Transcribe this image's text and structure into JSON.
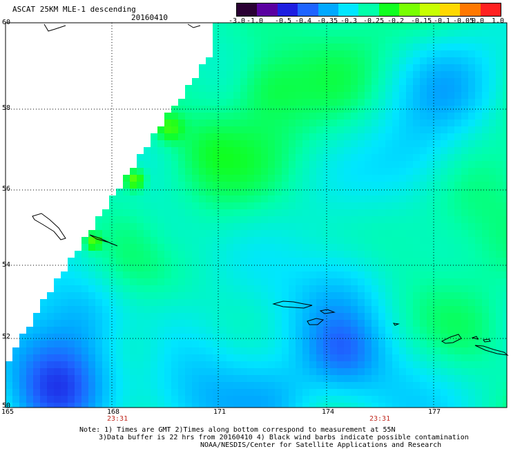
{
  "header": {
    "title": "ASCAT 25KM MLE-1 descending",
    "date": "20160410"
  },
  "colorbar": {
    "labels": [
      "-3.0",
      "-1.0",
      "-0.5",
      "-0.4",
      "-0.35",
      "-0.3",
      "-0.25",
      "-0.2",
      "-0.15",
      "-0.1",
      "-0.05",
      "0.0",
      "1.0"
    ],
    "colors": [
      "#2a0033",
      "#5a00a0",
      "#1e1ee0",
      "#1e64ff",
      "#00a8ff",
      "#00e6ff",
      "#00ffaa",
      "#10ff20",
      "#78ff00",
      "#c8ff00",
      "#ffd800",
      "#ff7800",
      "#ff2020"
    ]
  },
  "map": {
    "lat_labels": [
      "60",
      "58",
      "56",
      "54",
      "52",
      "50"
    ],
    "lon_labels": [
      "165",
      "168",
      "171",
      "174",
      "177"
    ],
    "time_labels": [
      "23:31",
      "23:31"
    ]
  },
  "footer": {
    "note1": "Note: 1) Times are GMT 2)Times along bottom correspond to measurement at 55N",
    "note2": "3)Data buffer is 22 hrs from 20160410 4) Black wind barbs indicate possible contamination",
    "note3": "NOAA/NESDIS/Center for Satellite Applications and Research"
  }
}
